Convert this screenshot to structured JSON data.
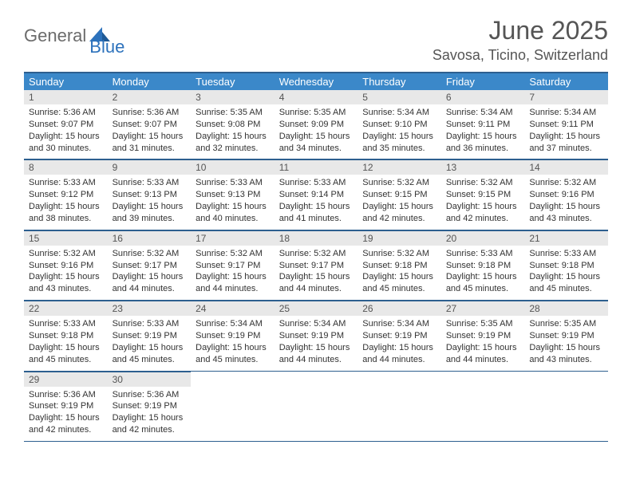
{
  "logo": {
    "part1": "General",
    "part2": "Blue"
  },
  "title": "June 2025",
  "location": "Savosa, Ticino, Switzerland",
  "colors": {
    "header_bg": "#3b88c9",
    "header_border": "#2d5f8f",
    "daynum_bg": "#e8e8e8",
    "text_gray": "#555555",
    "logo_gray": "#6b6b6b",
    "logo_blue": "#2d72bc"
  },
  "weekdays": [
    "Sunday",
    "Monday",
    "Tuesday",
    "Wednesday",
    "Thursday",
    "Friday",
    "Saturday"
  ],
  "days": [
    {
      "n": 1,
      "sunrise": "5:36 AM",
      "sunset": "9:07 PM",
      "daylight": "15 hours and 30 minutes."
    },
    {
      "n": 2,
      "sunrise": "5:36 AM",
      "sunset": "9:07 PM",
      "daylight": "15 hours and 31 minutes."
    },
    {
      "n": 3,
      "sunrise": "5:35 AM",
      "sunset": "9:08 PM",
      "daylight": "15 hours and 32 minutes."
    },
    {
      "n": 4,
      "sunrise": "5:35 AM",
      "sunset": "9:09 PM",
      "daylight": "15 hours and 34 minutes."
    },
    {
      "n": 5,
      "sunrise": "5:34 AM",
      "sunset": "9:10 PM",
      "daylight": "15 hours and 35 minutes."
    },
    {
      "n": 6,
      "sunrise": "5:34 AM",
      "sunset": "9:11 PM",
      "daylight": "15 hours and 36 minutes."
    },
    {
      "n": 7,
      "sunrise": "5:34 AM",
      "sunset": "9:11 PM",
      "daylight": "15 hours and 37 minutes."
    },
    {
      "n": 8,
      "sunrise": "5:33 AM",
      "sunset": "9:12 PM",
      "daylight": "15 hours and 38 minutes."
    },
    {
      "n": 9,
      "sunrise": "5:33 AM",
      "sunset": "9:13 PM",
      "daylight": "15 hours and 39 minutes."
    },
    {
      "n": 10,
      "sunrise": "5:33 AM",
      "sunset": "9:13 PM",
      "daylight": "15 hours and 40 minutes."
    },
    {
      "n": 11,
      "sunrise": "5:33 AM",
      "sunset": "9:14 PM",
      "daylight": "15 hours and 41 minutes."
    },
    {
      "n": 12,
      "sunrise": "5:32 AM",
      "sunset": "9:15 PM",
      "daylight": "15 hours and 42 minutes."
    },
    {
      "n": 13,
      "sunrise": "5:32 AM",
      "sunset": "9:15 PM",
      "daylight": "15 hours and 42 minutes."
    },
    {
      "n": 14,
      "sunrise": "5:32 AM",
      "sunset": "9:16 PM",
      "daylight": "15 hours and 43 minutes."
    },
    {
      "n": 15,
      "sunrise": "5:32 AM",
      "sunset": "9:16 PM",
      "daylight": "15 hours and 43 minutes."
    },
    {
      "n": 16,
      "sunrise": "5:32 AM",
      "sunset": "9:17 PM",
      "daylight": "15 hours and 44 minutes."
    },
    {
      "n": 17,
      "sunrise": "5:32 AM",
      "sunset": "9:17 PM",
      "daylight": "15 hours and 44 minutes."
    },
    {
      "n": 18,
      "sunrise": "5:32 AM",
      "sunset": "9:17 PM",
      "daylight": "15 hours and 44 minutes."
    },
    {
      "n": 19,
      "sunrise": "5:32 AM",
      "sunset": "9:18 PM",
      "daylight": "15 hours and 45 minutes."
    },
    {
      "n": 20,
      "sunrise": "5:33 AM",
      "sunset": "9:18 PM",
      "daylight": "15 hours and 45 minutes."
    },
    {
      "n": 21,
      "sunrise": "5:33 AM",
      "sunset": "9:18 PM",
      "daylight": "15 hours and 45 minutes."
    },
    {
      "n": 22,
      "sunrise": "5:33 AM",
      "sunset": "9:18 PM",
      "daylight": "15 hours and 45 minutes."
    },
    {
      "n": 23,
      "sunrise": "5:33 AM",
      "sunset": "9:19 PM",
      "daylight": "15 hours and 45 minutes."
    },
    {
      "n": 24,
      "sunrise": "5:34 AM",
      "sunset": "9:19 PM",
      "daylight": "15 hours and 45 minutes."
    },
    {
      "n": 25,
      "sunrise": "5:34 AM",
      "sunset": "9:19 PM",
      "daylight": "15 hours and 44 minutes."
    },
    {
      "n": 26,
      "sunrise": "5:34 AM",
      "sunset": "9:19 PM",
      "daylight": "15 hours and 44 minutes."
    },
    {
      "n": 27,
      "sunrise": "5:35 AM",
      "sunset": "9:19 PM",
      "daylight": "15 hours and 44 minutes."
    },
    {
      "n": 28,
      "sunrise": "5:35 AM",
      "sunset": "9:19 PM",
      "daylight": "15 hours and 43 minutes."
    },
    {
      "n": 29,
      "sunrise": "5:36 AM",
      "sunset": "9:19 PM",
      "daylight": "15 hours and 42 minutes."
    },
    {
      "n": 30,
      "sunrise": "5:36 AM",
      "sunset": "9:19 PM",
      "daylight": "15 hours and 42 minutes."
    }
  ],
  "labels": {
    "sunrise": "Sunrise: ",
    "sunset": "Sunset: ",
    "daylight": "Daylight: "
  },
  "start_weekday": 0,
  "total_cells": 35
}
